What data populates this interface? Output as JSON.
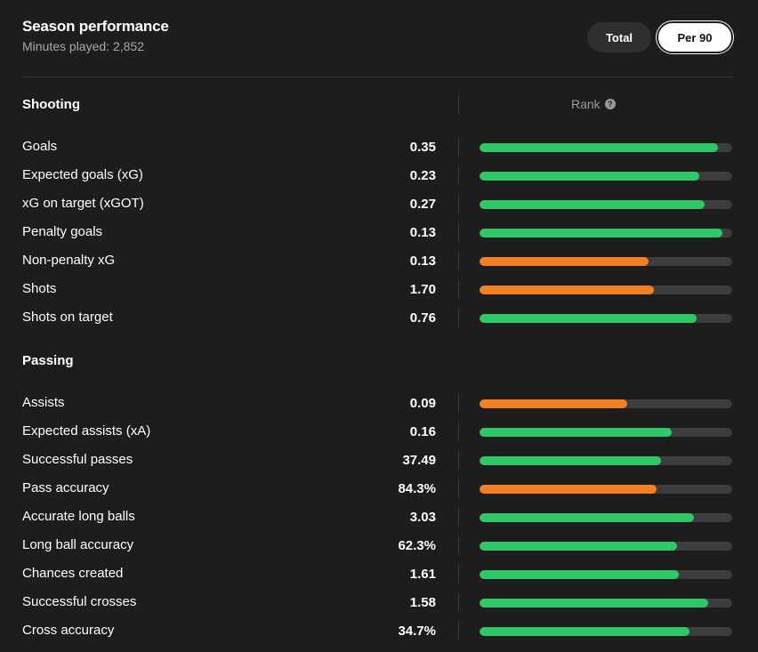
{
  "header": {
    "title": "Season performance",
    "subtitle": "Minutes played: 2,852"
  },
  "toggle": {
    "total_label": "Total",
    "per90_label": "Per 90",
    "selected": "Per 90"
  },
  "rank_header": {
    "label": "Rank",
    "help_icon": "question-circle-icon"
  },
  "colors": {
    "good": "#2ec866",
    "average": "#f08022",
    "track": "#3d3d3d"
  },
  "sections": [
    {
      "title": "Shooting",
      "stats": [
        {
          "label": "Goals",
          "value": "0.35",
          "rank_fraction": 0.945,
          "tier": "good"
        },
        {
          "label": "Expected goals (xG)",
          "value": "0.23",
          "rank_fraction": 0.87,
          "tier": "good"
        },
        {
          "label": "xG on target (xGOT)",
          "value": "0.27",
          "rank_fraction": 0.89,
          "tier": "good"
        },
        {
          "label": "Penalty goals",
          "value": "0.13",
          "rank_fraction": 0.96,
          "tier": "good"
        },
        {
          "label": "Non-penalty xG",
          "value": "0.13",
          "rank_fraction": 0.67,
          "tier": "average"
        },
        {
          "label": "Shots",
          "value": "1.70",
          "rank_fraction": 0.69,
          "tier": "average"
        },
        {
          "label": "Shots on target",
          "value": "0.76",
          "rank_fraction": 0.86,
          "tier": "good"
        }
      ]
    },
    {
      "title": "Passing",
      "stats": [
        {
          "label": "Assists",
          "value": "0.09",
          "rank_fraction": 0.585,
          "tier": "average"
        },
        {
          "label": "Expected assists (xA)",
          "value": "0.16",
          "rank_fraction": 0.76,
          "tier": "good"
        },
        {
          "label": "Successful passes",
          "value": "37.49",
          "rank_fraction": 0.72,
          "tier": "good"
        },
        {
          "label": "Pass accuracy",
          "value": "84.3%",
          "rank_fraction": 0.7,
          "tier": "average"
        },
        {
          "label": "Accurate long balls",
          "value": "3.03",
          "rank_fraction": 0.85,
          "tier": "good"
        },
        {
          "label": "Long ball accuracy",
          "value": "62.3%",
          "rank_fraction": 0.78,
          "tier": "good"
        },
        {
          "label": "Chances created",
          "value": "1.61",
          "rank_fraction": 0.79,
          "tier": "good"
        },
        {
          "label": "Successful crosses",
          "value": "1.58",
          "rank_fraction": 0.905,
          "tier": "good"
        },
        {
          "label": "Cross accuracy",
          "value": "34.7%",
          "rank_fraction": 0.83,
          "tier": "good"
        }
      ]
    }
  ]
}
